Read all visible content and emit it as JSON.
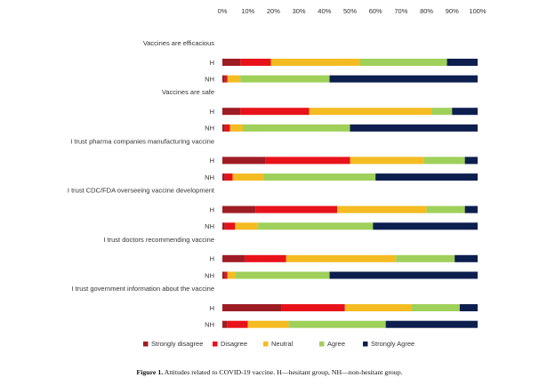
{
  "chart_data": {
    "type": "bar",
    "orientation": "horizontal",
    "stacked": true,
    "percent": true,
    "xlim": [
      0,
      100
    ],
    "xticks": [
      "0%",
      "10%",
      "20%",
      "30%",
      "40%",
      "50%",
      "60%",
      "70%",
      "80%",
      "90%",
      "100%"
    ],
    "legend_position": "bottom",
    "series": [
      {
        "name": "Strongly disagree",
        "color": "#9e1c24"
      },
      {
        "name": "Disagree",
        "color": "#e8121a"
      },
      {
        "name": "Neutral",
        "color": "#f4bb22"
      },
      {
        "name": "Agree",
        "color": "#9fd05a"
      },
      {
        "name": "Strongly Agree",
        "color": "#0d1f4f"
      }
    ],
    "groups": [
      {
        "label": "Vaccines are efficacious",
        "rows": [
          {
            "label": "H",
            "values": [
              7,
              12,
              35,
              34,
              12
            ]
          },
          {
            "label": "NH",
            "values": [
              1,
              1,
              5,
              35,
              58
            ]
          }
        ]
      },
      {
        "label": "Vaccines are safe",
        "rows": [
          {
            "label": "H",
            "values": [
              7,
              27,
              48,
              8,
              10
            ]
          },
          {
            "label": "NH",
            "values": [
              1,
              2,
              5,
              42,
              50
            ]
          }
        ]
      },
      {
        "label": "I trust pharma companies manufacturing vaccine",
        "rows": [
          {
            "label": "H",
            "values": [
              17,
              33,
              29,
              16,
              5
            ]
          },
          {
            "label": "NH",
            "values": [
              1,
              3,
              12,
              44,
              40
            ]
          }
        ]
      },
      {
        "label": "I trust CDC/FDA overseeing vaccine development",
        "rows": [
          {
            "label": "H",
            "values": [
              13,
              32,
              35,
              15,
              5
            ]
          },
          {
            "label": "NH",
            "values": [
              1,
              4,
              9,
              45,
              41
            ]
          }
        ]
      },
      {
        "label": "I trust doctors recommending vaccine",
        "rows": [
          {
            "label": "H",
            "values": [
              9,
              16,
              43,
              23,
              9
            ]
          },
          {
            "label": "NH",
            "values": [
              1,
              1,
              3,
              37,
              58
            ]
          }
        ]
      },
      {
        "label": "I trust government information about the vaccine",
        "rows": [
          {
            "label": "H",
            "values": [
              23,
              25,
              26,
              19,
              7
            ]
          },
          {
            "label": "NH",
            "values": [
              2,
              8,
              16,
              38,
              36
            ]
          }
        ]
      }
    ]
  },
  "caption": {
    "label": "Figure 1.",
    "text": "Attitudes related to COVID-19 vaccine. H—hesitant group, NH—non-hesitant group."
  }
}
